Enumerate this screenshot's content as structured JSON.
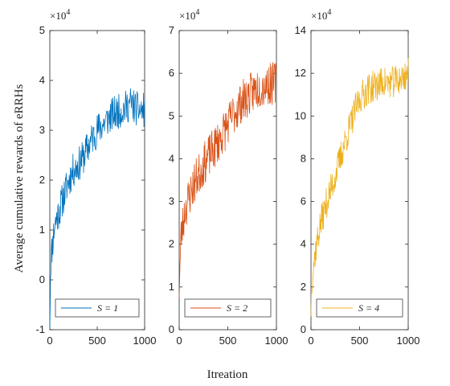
{
  "ylabel": "Average cumulative rewards of eRRHs",
  "xlabel": "Itreation",
  "chart_data": [
    {
      "type": "line",
      "series": [
        {
          "name": "S = 1",
          "color": "#0072BD",
          "anchors": [
            [
              0,
              -8000
            ],
            [
              10,
              4000
            ],
            [
              50,
              11000
            ],
            [
              100,
              14000
            ],
            [
              150,
              17000
            ],
            [
              200,
              20000
            ],
            [
              250,
              22000
            ],
            [
              300,
              23000
            ],
            [
              350,
              24500
            ],
            [
              400,
              26500
            ],
            [
              450,
              28500
            ],
            [
              500,
              30000
            ],
            [
              550,
              31000
            ],
            [
              600,
              32000
            ],
            [
              650,
              33000
            ],
            [
              700,
              33500
            ],
            [
              750,
              34000
            ],
            [
              800,
              34500
            ],
            [
              850,
              35500
            ],
            [
              900,
              34500
            ],
            [
              950,
              34000
            ],
            [
              1000,
              34000
            ]
          ],
          "noise": 3500,
          "seed": 11
        }
      ],
      "xlim": [
        0,
        1000
      ],
      "xticks": [
        0,
        500,
        1000
      ],
      "xtick_labels": [
        "0",
        "500",
        "1000"
      ],
      "ylim": [
        -10000,
        50000
      ],
      "yticks": [
        -10000,
        0,
        10000,
        20000,
        30000,
        40000,
        50000
      ],
      "ytick_labels": [
        "-1",
        "0",
        "1",
        "2",
        "3",
        "4",
        "5"
      ],
      "exponent_label": "×10",
      "exponent_power": "4",
      "legend": {
        "label": "S = 1",
        "position": "bottom-right"
      }
    },
    {
      "type": "line",
      "series": [
        {
          "name": "S = 2",
          "color": "#D95319",
          "anchors": [
            [
              0,
              10000
            ],
            [
              20,
              22000
            ],
            [
              60,
              28000
            ],
            [
              100,
              31000
            ],
            [
              150,
              34000
            ],
            [
              200,
              36500
            ],
            [
              250,
              38500
            ],
            [
              300,
              40500
            ],
            [
              350,
              42000
            ],
            [
              400,
              44000
            ],
            [
              450,
              46000
            ],
            [
              500,
              48000
            ],
            [
              550,
              50000
            ],
            [
              600,
              52000
            ],
            [
              650,
              53500
            ],
            [
              700,
              54500
            ],
            [
              750,
              55500
            ],
            [
              800,
              56500
            ],
            [
              850,
              57000
            ],
            [
              900,
              57500
            ],
            [
              950,
              57500
            ],
            [
              1000,
              58000
            ]
          ],
          "noise": 5000,
          "seed": 23
        }
      ],
      "xlim": [
        0,
        1000
      ],
      "xticks": [
        0,
        500,
        1000
      ],
      "xtick_labels": [
        "0",
        "500",
        "1000"
      ],
      "ylim": [
        0,
        70000
      ],
      "yticks": [
        0,
        10000,
        20000,
        30000,
        40000,
        50000,
        60000,
        70000
      ],
      "ytick_labels": [
        "0",
        "1",
        "2",
        "3",
        "4",
        "5",
        "6",
        "7"
      ],
      "exponent_label": "×10",
      "exponent_power": "4",
      "legend": {
        "label": "S = 2",
        "position": "bottom-right"
      }
    },
    {
      "type": "line",
      "series": [
        {
          "name": "S = 4",
          "color": "#EDB120",
          "anchors": [
            [
              0,
              10000
            ],
            [
              10,
              25000
            ],
            [
              50,
              38000
            ],
            [
              100,
              50000
            ],
            [
              150,
              58000
            ],
            [
              200,
              65000
            ],
            [
              250,
              72000
            ],
            [
              300,
              80000
            ],
            [
              350,
              88000
            ],
            [
              400,
              95000
            ],
            [
              450,
              102000
            ],
            [
              500,
              108000
            ],
            [
              550,
              111000
            ],
            [
              600,
              113000
            ],
            [
              650,
              114000
            ],
            [
              700,
              115000
            ],
            [
              750,
              116000
            ],
            [
              800,
              115500
            ],
            [
              850,
              116000
            ],
            [
              900,
              117000
            ],
            [
              950,
              118000
            ],
            [
              1000,
              120000
            ]
          ],
          "noise": 7500,
          "seed": 37
        }
      ],
      "xlim": [
        0,
        1000
      ],
      "xticks": [
        0,
        500,
        1000
      ],
      "xtick_labels": [
        "0",
        "500",
        "1000"
      ],
      "ylim": [
        0,
        140000
      ],
      "yticks": [
        0,
        20000,
        40000,
        60000,
        80000,
        100000,
        120000,
        140000
      ],
      "ytick_labels": [
        "0",
        "2",
        "4",
        "6",
        "8",
        "10",
        "12",
        "14"
      ],
      "exponent_label": "×10",
      "exponent_power": "4",
      "legend": {
        "label": "S = 4",
        "position": "bottom-right"
      }
    }
  ]
}
